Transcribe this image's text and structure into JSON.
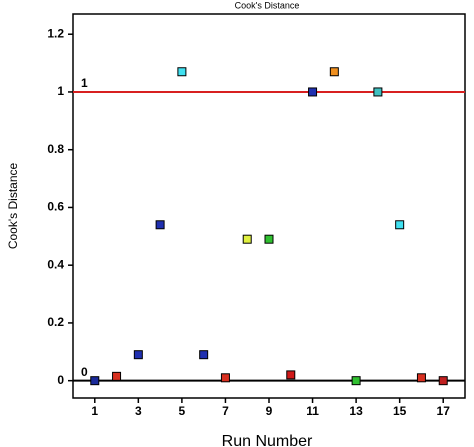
{
  "chart_data": {
    "type": "scatter",
    "title": "Cook's Distance",
    "x_label": "Run Number",
    "y_label": "Cook's Distance",
    "x": [
      1,
      2,
      3,
      4,
      5,
      6,
      7,
      8,
      9,
      10,
      11,
      12,
      13,
      14,
      15,
      16,
      17
    ],
    "values": [
      0,
      0.015,
      0.09,
      0.54,
      1.07,
      0.09,
      0.01,
      0.49,
      0.49,
      0.02,
      1.0,
      1.07,
      0,
      1.0,
      0.54,
      0.01,
      0
    ],
    "colors": [
      "#1a2a9a",
      "#d83020",
      "#2030b0",
      "#2030b0",
      "#40e0f0",
      "#2030b0",
      "#d83020",
      "#e0f040",
      "#30c030",
      "#d01818",
      "#2030b0",
      "#f09020",
      "#30c030",
      "#40c0c0",
      "#40e0f0",
      "#d83020",
      "#c02020"
    ],
    "xlim": [
      0,
      18
    ],
    "ylim": [
      -0.06,
      1.27
    ],
    "xticks": [
      1,
      3,
      5,
      7,
      9,
      11,
      13,
      15,
      17
    ],
    "yticks": [
      0,
      0.2,
      0.4,
      0.6,
      0.8,
      1,
      1.2
    ],
    "reference_lines": [
      {
        "value": 1,
        "label": "1",
        "color": "#d82020"
      },
      {
        "value": 0,
        "label": "0",
        "color": "#000000"
      }
    ]
  }
}
